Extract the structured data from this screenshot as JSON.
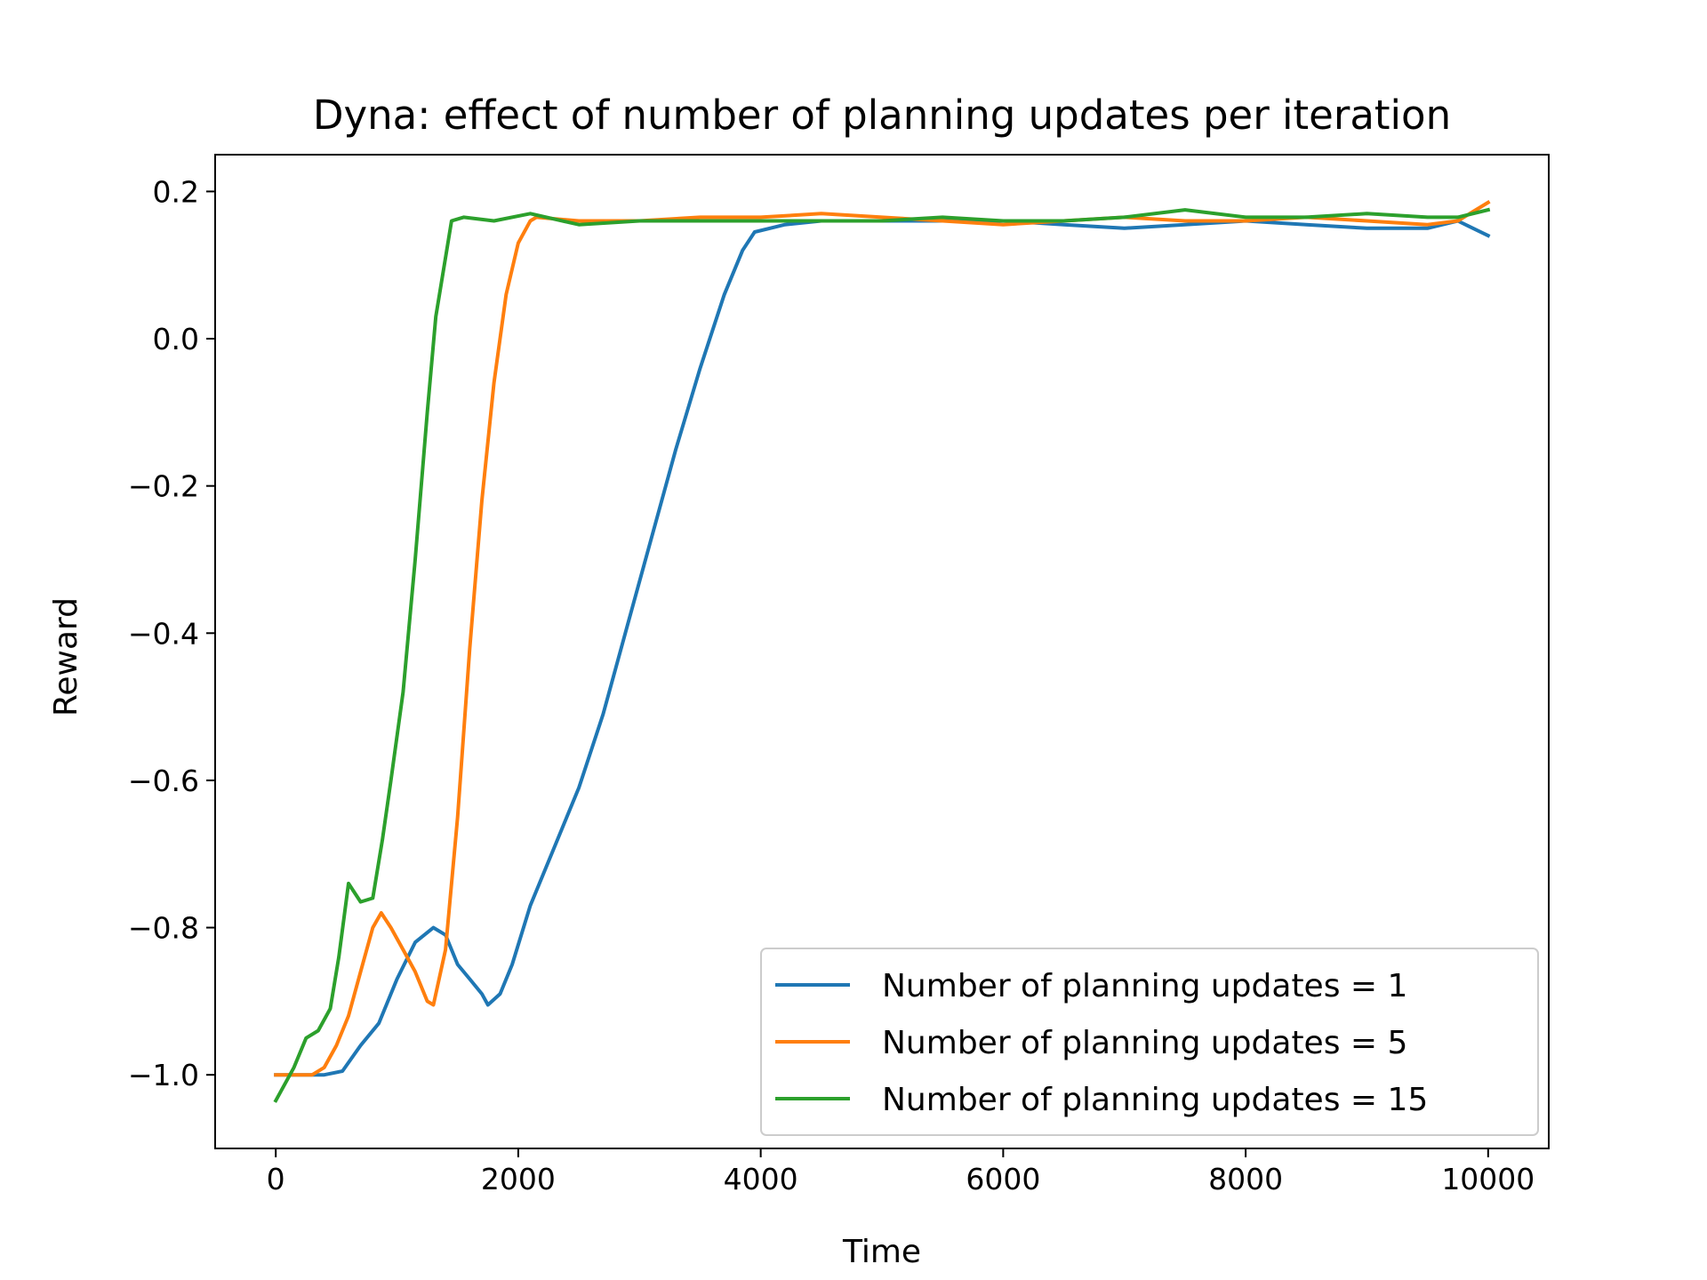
{
  "chart_data": {
    "type": "line",
    "title": "Dyna: effect of number of planning updates per iteration",
    "xlabel": "Time",
    "ylabel": "Reward",
    "xlim": [
      -500,
      10500
    ],
    "ylim": [
      -1.1,
      0.25
    ],
    "xticks": [
      0,
      2000,
      4000,
      6000,
      8000,
      10000
    ],
    "xtick_labels": [
      "0",
      "2000",
      "4000",
      "6000",
      "8000",
      "10000"
    ],
    "yticks": [
      0.2,
      0.0,
      -0.2,
      -0.4,
      -0.6,
      -0.8,
      -1.0
    ],
    "ytick_labels": [
      "0.2",
      "0.0",
      "−0.2",
      "−0.4",
      "−0.6",
      "−0.8",
      "−1.0"
    ],
    "grid": false,
    "legend_position": "lower-right",
    "series": [
      {
        "name": "Number of planning updates = 1",
        "color": "#1f77b4",
        "x": [
          0,
          200,
          400,
          550,
          700,
          850,
          1000,
          1150,
          1300,
          1400,
          1500,
          1600,
          1700,
          1750,
          1850,
          1950,
          2100,
          2300,
          2500,
          2700,
          2900,
          3100,
          3300,
          3500,
          3700,
          3850,
          3950,
          4200,
          4500,
          5000,
          5500,
          6000,
          6500,
          7000,
          7500,
          8000,
          8500,
          9000,
          9500,
          9750,
          10000
        ],
        "y": [
          -1.0,
          -1.0,
          -1.0,
          -0.995,
          -0.96,
          -0.93,
          -0.87,
          -0.82,
          -0.8,
          -0.81,
          -0.85,
          -0.87,
          -0.89,
          -0.905,
          -0.89,
          -0.85,
          -0.77,
          -0.69,
          -0.61,
          -0.51,
          -0.39,
          -0.27,
          -0.15,
          -0.04,
          0.06,
          0.12,
          0.145,
          0.155,
          0.16,
          0.16,
          0.16,
          0.16,
          0.155,
          0.15,
          0.155,
          0.16,
          0.155,
          0.15,
          0.15,
          0.16,
          0.14
        ]
      },
      {
        "name": "Number of planning updates = 5",
        "color": "#ff7f0e",
        "x": [
          0,
          200,
          300,
          400,
          500,
          600,
          700,
          800,
          870,
          950,
          1050,
          1150,
          1250,
          1300,
          1400,
          1500,
          1600,
          1700,
          1800,
          1900,
          2000,
          2100,
          2150,
          2500,
          3000,
          3500,
          4000,
          4500,
          5000,
          5500,
          6000,
          6500,
          7000,
          7500,
          8000,
          8500,
          9000,
          9500,
          9750,
          10000
        ],
        "y": [
          -1.0,
          -1.0,
          -1.0,
          -0.99,
          -0.96,
          -0.92,
          -0.86,
          -0.8,
          -0.78,
          -0.8,
          -0.83,
          -0.86,
          -0.9,
          -0.905,
          -0.83,
          -0.65,
          -0.42,
          -0.22,
          -0.06,
          0.06,
          0.13,
          0.16,
          0.165,
          0.16,
          0.16,
          0.165,
          0.165,
          0.17,
          0.165,
          0.16,
          0.155,
          0.16,
          0.165,
          0.16,
          0.16,
          0.165,
          0.16,
          0.155,
          0.16,
          0.185
        ]
      },
      {
        "name": "Number of planning updates = 15",
        "color": "#2ca02c",
        "x": [
          0,
          150,
          250,
          350,
          450,
          520,
          600,
          700,
          800,
          880,
          950,
          1050,
          1150,
          1250,
          1320,
          1400,
          1450,
          1550,
          1800,
          2100,
          2500,
          3000,
          3500,
          4000,
          4500,
          5000,
          5500,
          6000,
          6500,
          7000,
          7500,
          8000,
          8500,
          9000,
          9500,
          9750,
          10000
        ],
        "y": [
          -1.035,
          -0.99,
          -0.95,
          -0.94,
          -0.91,
          -0.84,
          -0.74,
          -0.765,
          -0.76,
          -0.68,
          -0.6,
          -0.48,
          -0.3,
          -0.1,
          0.03,
          0.11,
          0.16,
          0.165,
          0.16,
          0.17,
          0.155,
          0.16,
          0.16,
          0.16,
          0.16,
          0.16,
          0.165,
          0.16,
          0.16,
          0.165,
          0.175,
          0.165,
          0.165,
          0.17,
          0.165,
          0.165,
          0.175
        ]
      }
    ]
  }
}
